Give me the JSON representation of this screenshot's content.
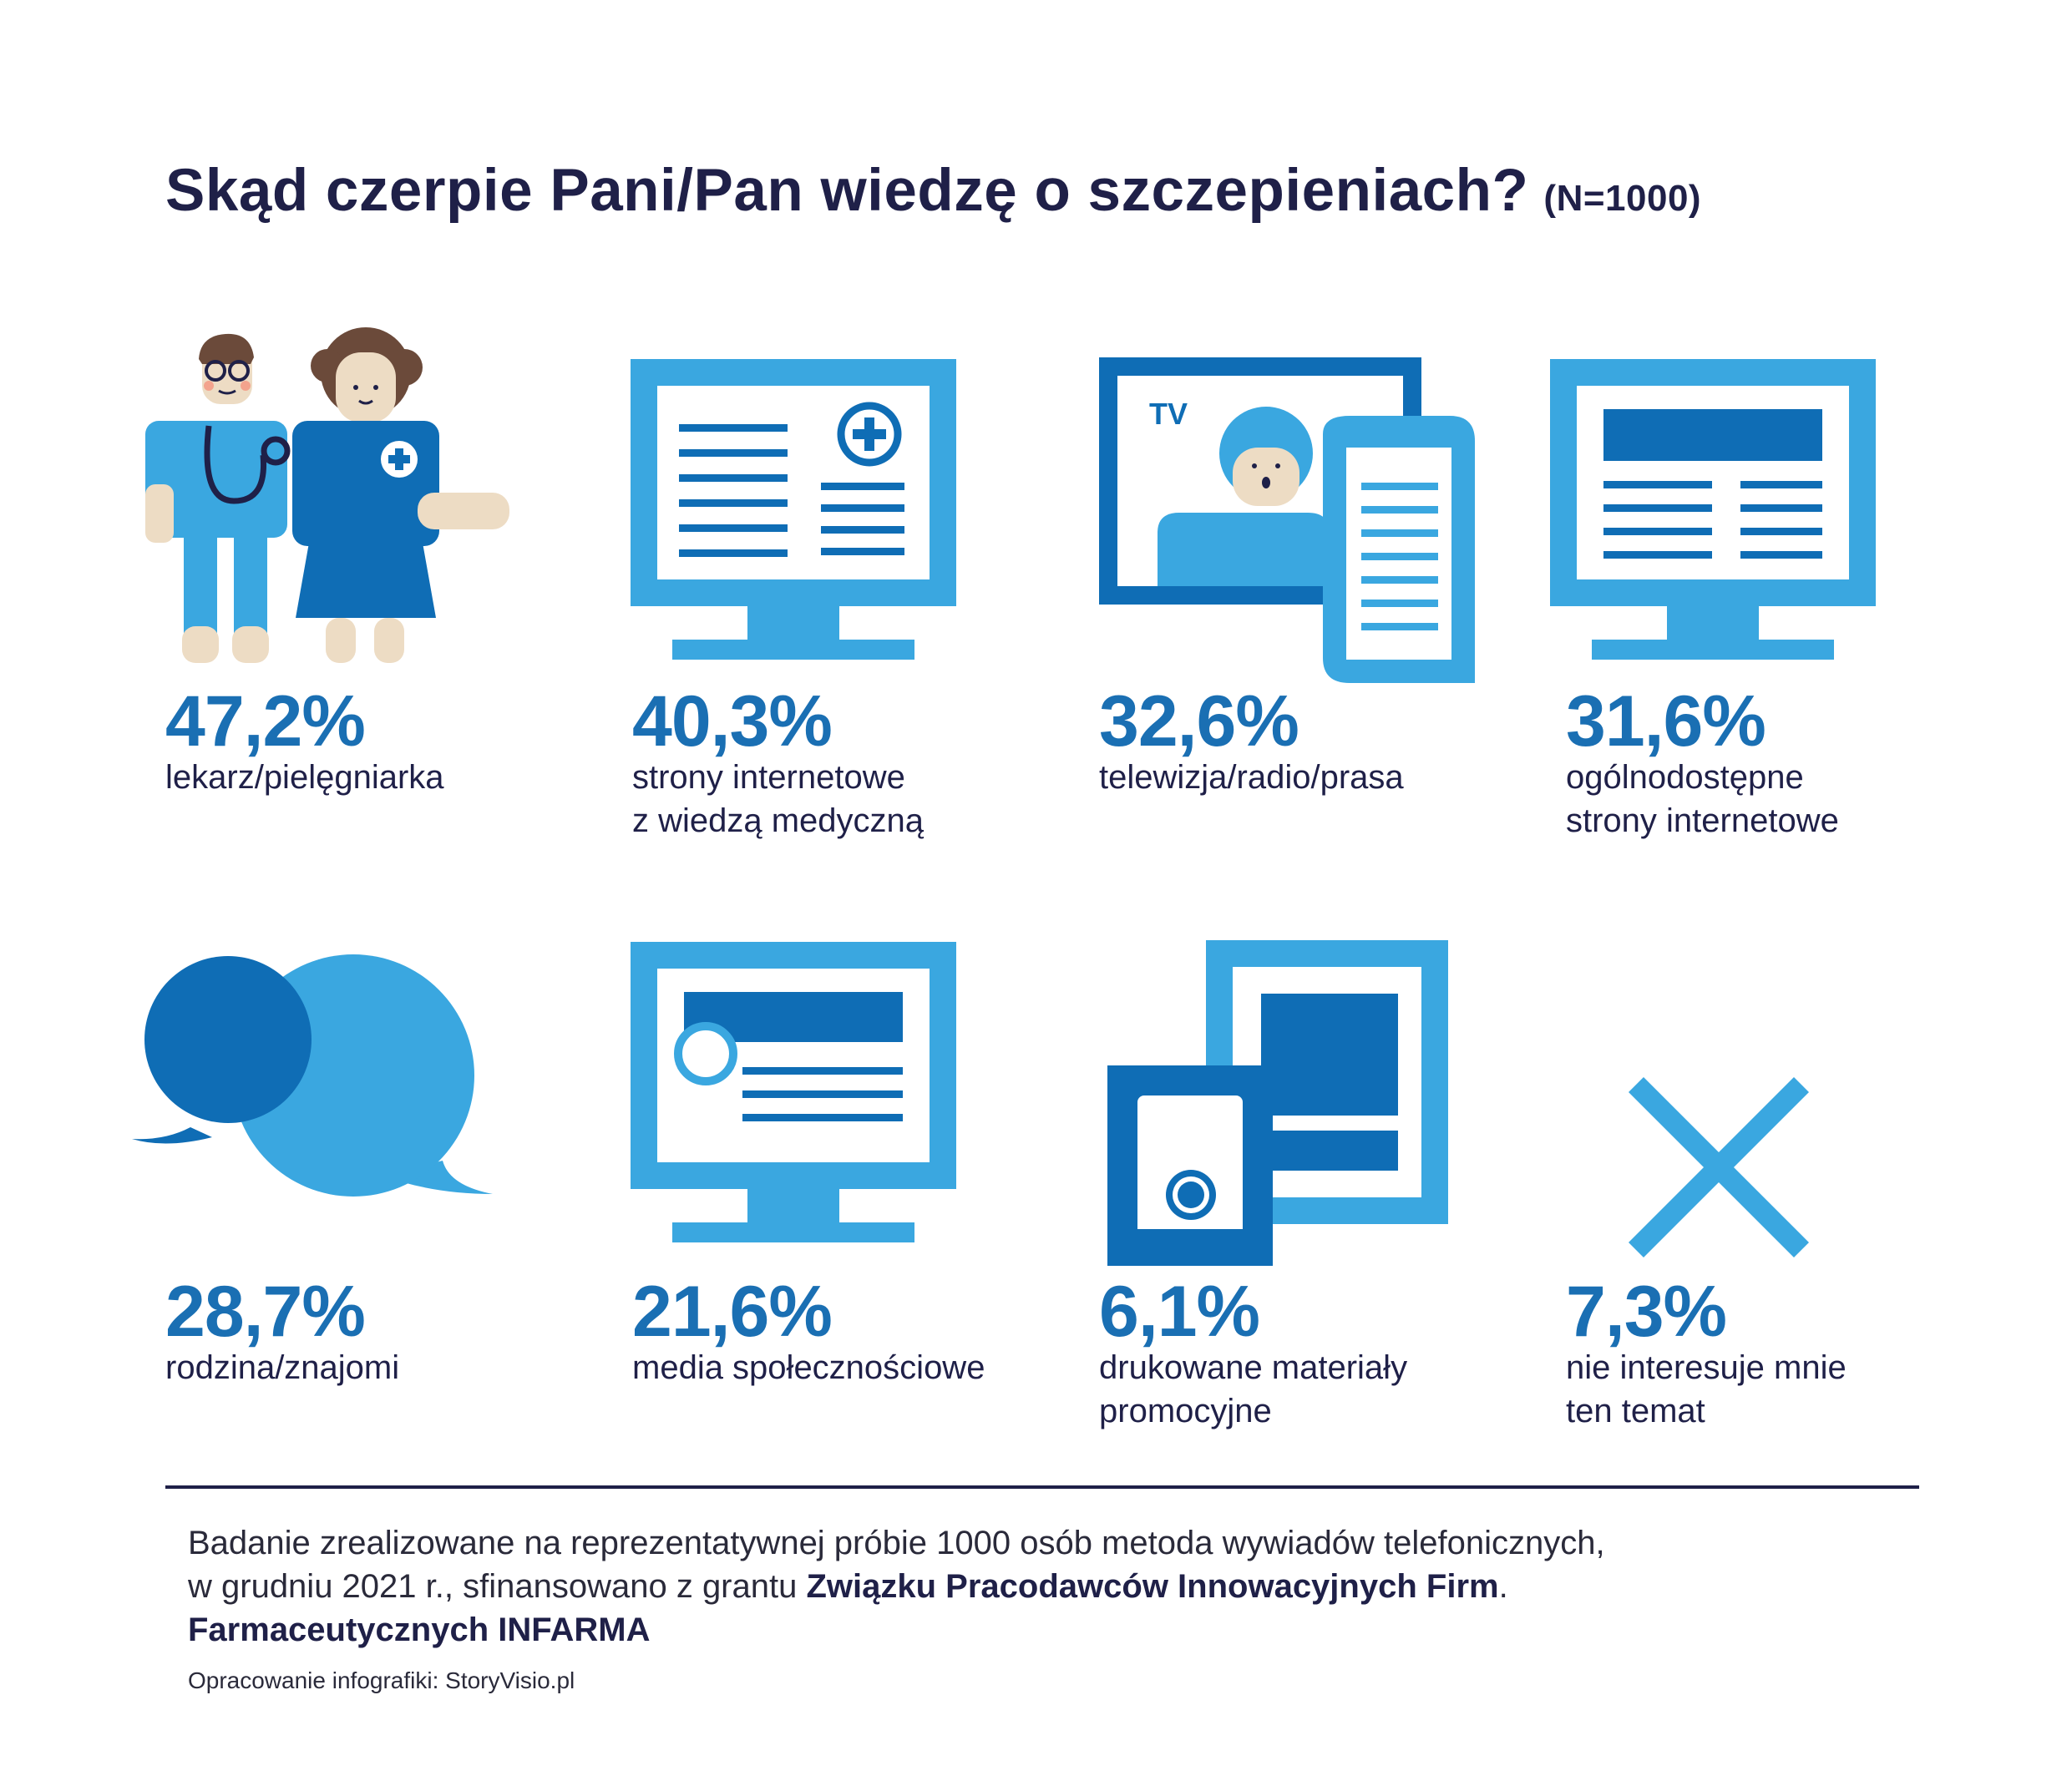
{
  "title": "Skąd czerpie Pani/Pan wiedzę o szczepieniach?",
  "sample": "(N=1000)",
  "colors": {
    "dark_navy": "#1f2048",
    "accent_blue": "#1a6fb3",
    "light_blue": "#3aa7e0",
    "mid_blue": "#0f6db5"
  },
  "chart_data": {
    "type": "table",
    "title": "Skąd czerpie Pani/Pan wiedzę o szczepieniach?",
    "unit": "%",
    "categories": [
      "lekarz/pielęgniarka",
      "strony internetowe z wiedzą medyczną",
      "telewizja/radio/prasa",
      "ogólnodostępne strony internetowe",
      "rodzina/znajomi",
      "media społecznościowe",
      "drukowane materiały promocyjne",
      "nie interesuje mnie ten temat"
    ],
    "values": [
      47.2,
      40.3,
      32.6,
      31.6,
      28.7,
      21.6,
      6.1,
      7.3
    ],
    "value_labels": [
      "47,2%",
      "40,3%",
      "32,6%",
      "31,6%",
      "28,7%",
      "21,6%",
      "6,1%",
      "7,3%"
    ],
    "icons": [
      "doctor-nurse-icon",
      "medical-website-icon",
      "tv-newspaper-icon",
      "website-icon",
      "speech-bubbles-icon",
      "social-media-icon",
      "printed-materials-icon",
      "cross-icon"
    ],
    "label_lines": [
      [
        "lekarz/pielęgniarka"
      ],
      [
        "strony internetowe",
        "z wiedzą medyczną"
      ],
      [
        "telewizja/radio/prasa"
      ],
      [
        "ogólnodostępne",
        "strony internetowe"
      ],
      [
        "rodzina/znajomi"
      ],
      [
        "media społecznościowe"
      ],
      [
        "drukowane materiały",
        "promocyjne"
      ],
      [
        "nie interesuje mnie",
        "ten temat"
      ]
    ]
  },
  "tv_label": "TV",
  "footer": {
    "line1": "Badanie zrealizowane na reprezentatywnej próbie 1000 osób metoda wywiadów telefonicznych,",
    "line2_prefix": "w grudniu 2021 r., sfinansowano z grantu ",
    "line2_bold": "Związku Pracodawców Innowacyjnych Firm",
    "line2_suffix": ".",
    "line3_bold": "Farmaceutycznych INFARMA",
    "credit": "Opracowanie infografiki: StoryVisio.pl"
  }
}
